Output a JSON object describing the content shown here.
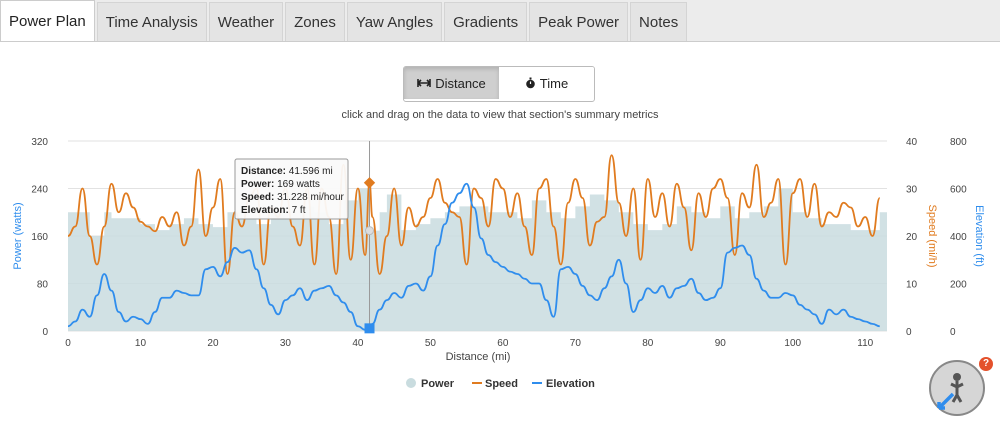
{
  "tabs": [
    {
      "label": "Power Plan",
      "active": true
    },
    {
      "label": "Time Analysis"
    },
    {
      "label": "Weather"
    },
    {
      "label": "Zones"
    },
    {
      "label": "Yaw Angles"
    },
    {
      "label": "Gradients"
    },
    {
      "label": "Peak Power"
    },
    {
      "label": "Notes"
    }
  ],
  "toggle": {
    "distance_label": "Distance",
    "time_label": "Time",
    "selected": "Distance"
  },
  "hint": "click and drag on the data to view that section's summary metrics",
  "tooltip": {
    "distance_key": "Distance:",
    "distance_val": "41.596 mi",
    "power_key": "Power:",
    "power_val": "169 watts",
    "speed_key": "Speed:",
    "speed_val": "31.228 mi/hour",
    "elevation_key": "Elevation:",
    "elevation_val": "7 ft"
  },
  "help_badge": "?",
  "colors": {
    "power": "#c9dcdf",
    "speed": "#e07b1f",
    "elevation": "#2f8ded"
  },
  "chart_data": {
    "type": "line",
    "xlabel": "Distance (mi)",
    "x_ticks": [
      0,
      10,
      20,
      30,
      40,
      50,
      60,
      70,
      80,
      90,
      100,
      110
    ],
    "xlim": [
      0,
      113
    ],
    "axes": {
      "power": {
        "label": "Power (watts)",
        "ticks": [
          0,
          80,
          160,
          240,
          320
        ],
        "ylim": [
          0,
          320
        ]
      },
      "speed": {
        "label": "Speed (mi/h)",
        "ticks": [
          0,
          10,
          20,
          30,
          40
        ],
        "ylim": [
          0,
          40
        ]
      },
      "elevation": {
        "label": "Elevation (ft)",
        "ticks": [
          0,
          200,
          400,
          600,
          800
        ],
        "ylim": [
          0,
          800
        ]
      }
    },
    "legend": [
      "Power",
      "Speed",
      "Elevation"
    ],
    "legend_position": "bottom",
    "series": [
      {
        "name": "Power",
        "type": "area",
        "axis": "power",
        "x": [
          0,
          2,
          3,
          5,
          6,
          8,
          10,
          12,
          14,
          16,
          18,
          20,
          22,
          24,
          26,
          28,
          30,
          32,
          34,
          36,
          38,
          40,
          41.6,
          43,
          44,
          46,
          48,
          50,
          52,
          54,
          56,
          58,
          60,
          62,
          64,
          66,
          68,
          70,
          72,
          74,
          76,
          78,
          80,
          82,
          84,
          86,
          88,
          90,
          92,
          94,
          96,
          98,
          100,
          102,
          104,
          106,
          108,
          110,
          112
        ],
        "y": [
          200,
          200,
          160,
          200,
          190,
          190,
          180,
          170,
          180,
          190,
          180,
          175,
          200,
          190,
          180,
          200,
          190,
          210,
          200,
          180,
          220,
          240,
          169,
          200,
          230,
          170,
          180,
          190,
          200,
          210,
          210,
          200,
          200,
          190,
          220,
          200,
          190,
          210,
          230,
          220,
          200,
          180,
          170,
          180,
          210,
          200,
          190,
          210,
          190,
          200,
          210,
          240,
          200,
          190,
          180,
          180,
          170,
          170,
          200
        ]
      },
      {
        "name": "Speed",
        "type": "line",
        "axis": "speed",
        "x": [
          0,
          1,
          2,
          3,
          4,
          5,
          6,
          7,
          8,
          9,
          10,
          11,
          12,
          13,
          14,
          15,
          16,
          17,
          18,
          19,
          20,
          21,
          22,
          23,
          24,
          25,
          26,
          27,
          28,
          29,
          30,
          31,
          32,
          33,
          34,
          35,
          36,
          37,
          38,
          39,
          40,
          41,
          41.6,
          42,
          43,
          44,
          45,
          46,
          47,
          48,
          49,
          50,
          51,
          52,
          53,
          54,
          55,
          56,
          57,
          58,
          59,
          60,
          61,
          62,
          63,
          64,
          65,
          66,
          67,
          68,
          69,
          70,
          71,
          72,
          73,
          74,
          75,
          76,
          77,
          78,
          79,
          80,
          81,
          82,
          83,
          84,
          85,
          86,
          87,
          88,
          89,
          90,
          91,
          92,
          93,
          94,
          95,
          96,
          97,
          98,
          99,
          100,
          101,
          102,
          103,
          104,
          105,
          106,
          107,
          108,
          109,
          110,
          111,
          112
        ],
        "y": [
          20,
          22,
          30,
          20,
          14,
          22,
          31,
          25,
          29,
          26,
          23,
          22,
          21,
          24,
          22,
          25,
          18,
          22,
          34,
          20,
          26,
          32,
          12,
          25,
          22,
          28,
          30,
          14,
          26,
          24,
          30,
          22,
          18,
          30,
          14,
          30,
          24,
          12,
          35,
          15,
          30,
          16,
          31.2,
          24,
          12,
          20,
          30,
          18,
          26,
          22,
          24,
          28,
          32,
          27,
          25,
          24,
          14,
          30,
          28,
          22,
          32,
          30,
          24,
          29,
          22,
          16,
          30,
          32,
          22,
          14,
          27,
          32,
          28,
          18,
          23,
          24,
          37,
          27,
          20,
          30,
          15,
          32,
          24,
          29,
          22,
          31,
          26,
          17,
          29,
          24,
          30,
          32,
          28,
          16,
          29,
          26,
          35,
          24,
          27,
          32,
          14,
          29,
          32,
          24,
          31,
          22,
          25,
          24,
          27,
          26,
          22,
          24,
          20,
          28
        ]
      },
      {
        "name": "Elevation",
        "type": "line",
        "axis": "elevation",
        "x": [
          0,
          1,
          2,
          3,
          4,
          5,
          6,
          7,
          8,
          9,
          10,
          11,
          12,
          13,
          14,
          15,
          16,
          17,
          18,
          19,
          20,
          21,
          22,
          23,
          24,
          25,
          26,
          27,
          28,
          29,
          30,
          31,
          32,
          33,
          34,
          35,
          36,
          37,
          38,
          39,
          40,
          41,
          41.6,
          42,
          43,
          44,
          45,
          46,
          47,
          48,
          49,
          50,
          51,
          52,
          53,
          54,
          55,
          56,
          57,
          58,
          59,
          60,
          61,
          62,
          63,
          64,
          65,
          66,
          67,
          68,
          69,
          70,
          71,
          72,
          73,
          74,
          75,
          76,
          77,
          78,
          79,
          80,
          81,
          82,
          83,
          84,
          85,
          86,
          87,
          88,
          89,
          90,
          91,
          92,
          93,
          94,
          95,
          96,
          97,
          98,
          99,
          100,
          101,
          102,
          103,
          104,
          105,
          106,
          107,
          108,
          109,
          110,
          111,
          112
        ],
        "y": [
          20,
          40,
          90,
          60,
          150,
          240,
          170,
          80,
          40,
          60,
          50,
          30,
          80,
          140,
          140,
          170,
          160,
          150,
          150,
          260,
          270,
          230,
          290,
          350,
          330,
          340,
          260,
          180,
          110,
          70,
          130,
          150,
          180,
          130,
          170,
          180,
          190,
          150,
          120,
          80,
          20,
          5,
          7,
          30,
          90,
          130,
          160,
          140,
          190,
          200,
          170,
          230,
          360,
          450,
          540,
          580,
          620,
          520,
          390,
          320,
          290,
          270,
          250,
          240,
          220,
          200,
          200,
          130,
          60,
          260,
          270,
          240,
          190,
          150,
          130,
          180,
          230,
          300,
          200,
          80,
          130,
          180,
          160,
          190,
          140,
          180,
          190,
          220,
          160,
          130,
          140,
          180,
          330,
          350,
          360,
          320,
          220,
          170,
          140,
          140,
          160,
          150,
          110,
          90,
          70,
          30,
          90,
          70,
          90,
          60,
          50,
          40,
          30,
          20
        ]
      }
    ]
  }
}
